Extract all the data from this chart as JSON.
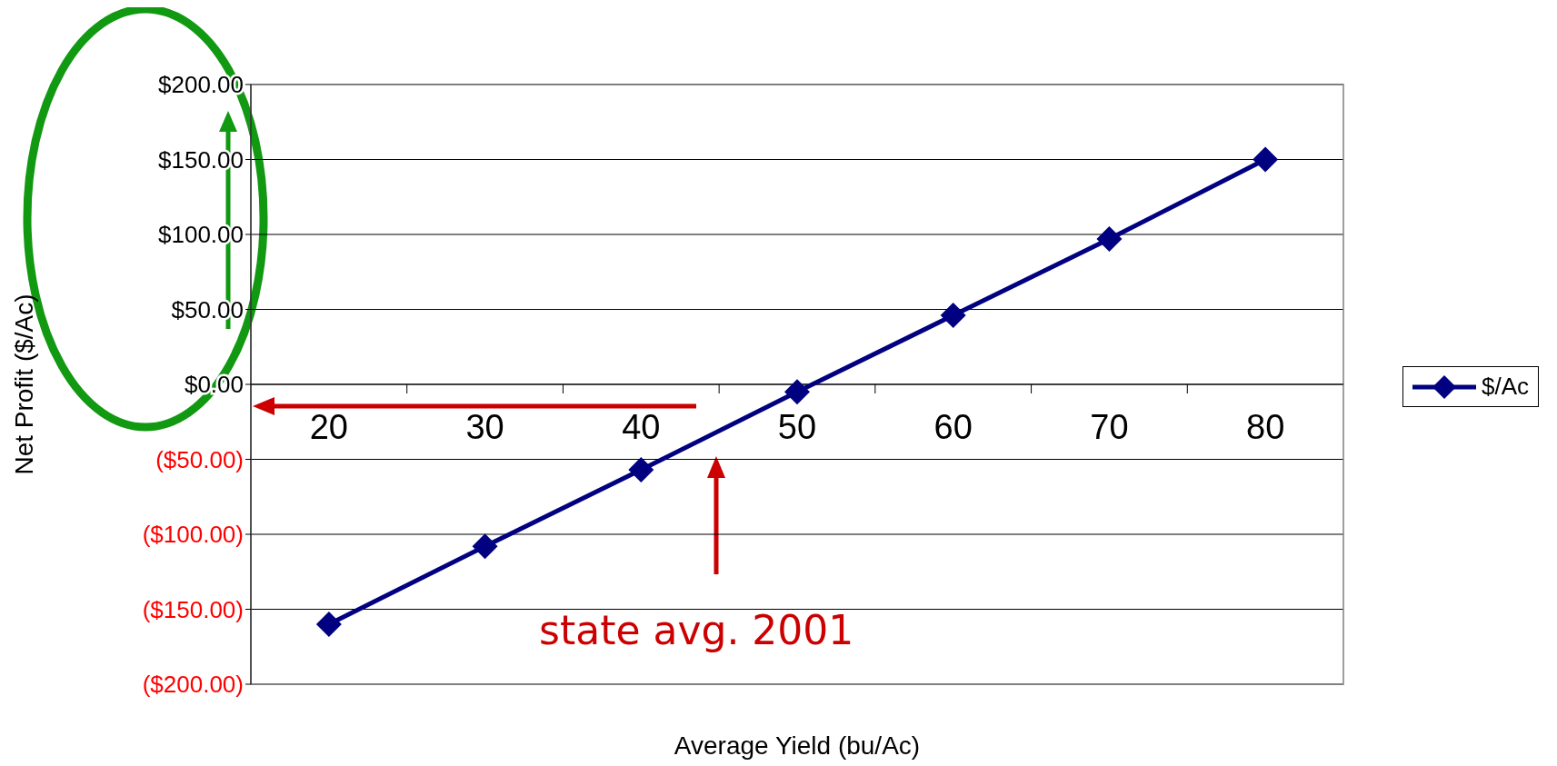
{
  "chart_data": {
    "type": "line",
    "xlabel": "Average Yield (bu/Ac)",
    "ylabel": "Net Profit ($/Ac)",
    "categories": [
      "20",
      "30",
      "40",
      "50",
      "60",
      "70",
      "80"
    ],
    "series": [
      {
        "name": "$/Ac",
        "color": "#000080",
        "values": [
          -160,
          -108,
          -57,
          -5,
          46,
          97,
          150
        ]
      }
    ],
    "ylim": [
      -200,
      200
    ],
    "yticks": [
      {
        "value": -200,
        "label": "($200.00)"
      },
      {
        "value": -150,
        "label": "($150.00)"
      },
      {
        "value": -100,
        "label": "($100.00)"
      },
      {
        "value": -50,
        "label": "($50.00)"
      },
      {
        "value": 0,
        "label": "$0.00"
      },
      {
        "value": 50,
        "label": "$50.00"
      },
      {
        "value": 100,
        "label": "$100.00"
      },
      {
        "value": 150,
        "label": "$150.00"
      },
      {
        "value": 200,
        "label": "$200.00"
      }
    ],
    "grid": "y",
    "legend": "right",
    "marker": "diamond",
    "line_style": "solid",
    "annotations": [
      "state avg. 2001"
    ]
  }
}
